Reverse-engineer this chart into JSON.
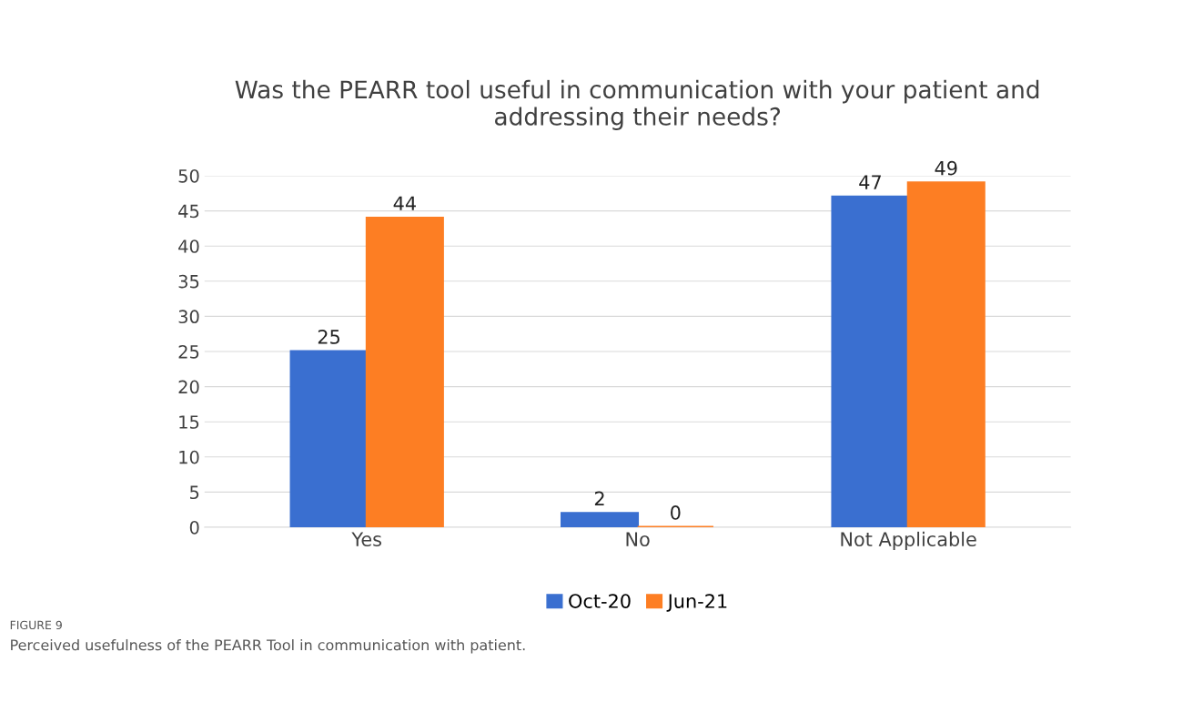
{
  "chart_data": {
    "type": "bar",
    "title": "Was the PEARR tool useful in communication with your patient and\naddressing their needs?",
    "categories": [
      "Yes",
      "No",
      "Not Applicable"
    ],
    "series": [
      {
        "name": "Oct-20",
        "color": "#3a6fd0",
        "values": [
          25,
          2,
          47
        ]
      },
      {
        "name": "Jun-21",
        "color": "#fd7e23",
        "values": [
          44,
          0,
          49
        ]
      }
    ],
    "ylim": [
      0,
      50
    ],
    "yticks": [
      0,
      5,
      10,
      15,
      20,
      25,
      30,
      35,
      40,
      45,
      50
    ],
    "grid": "y",
    "legend": "bottom",
    "data_labels": true,
    "annotations": [
      "FIGURE 9",
      "Perceived usefulness of the PEARR Tool in communication with patient."
    ]
  }
}
